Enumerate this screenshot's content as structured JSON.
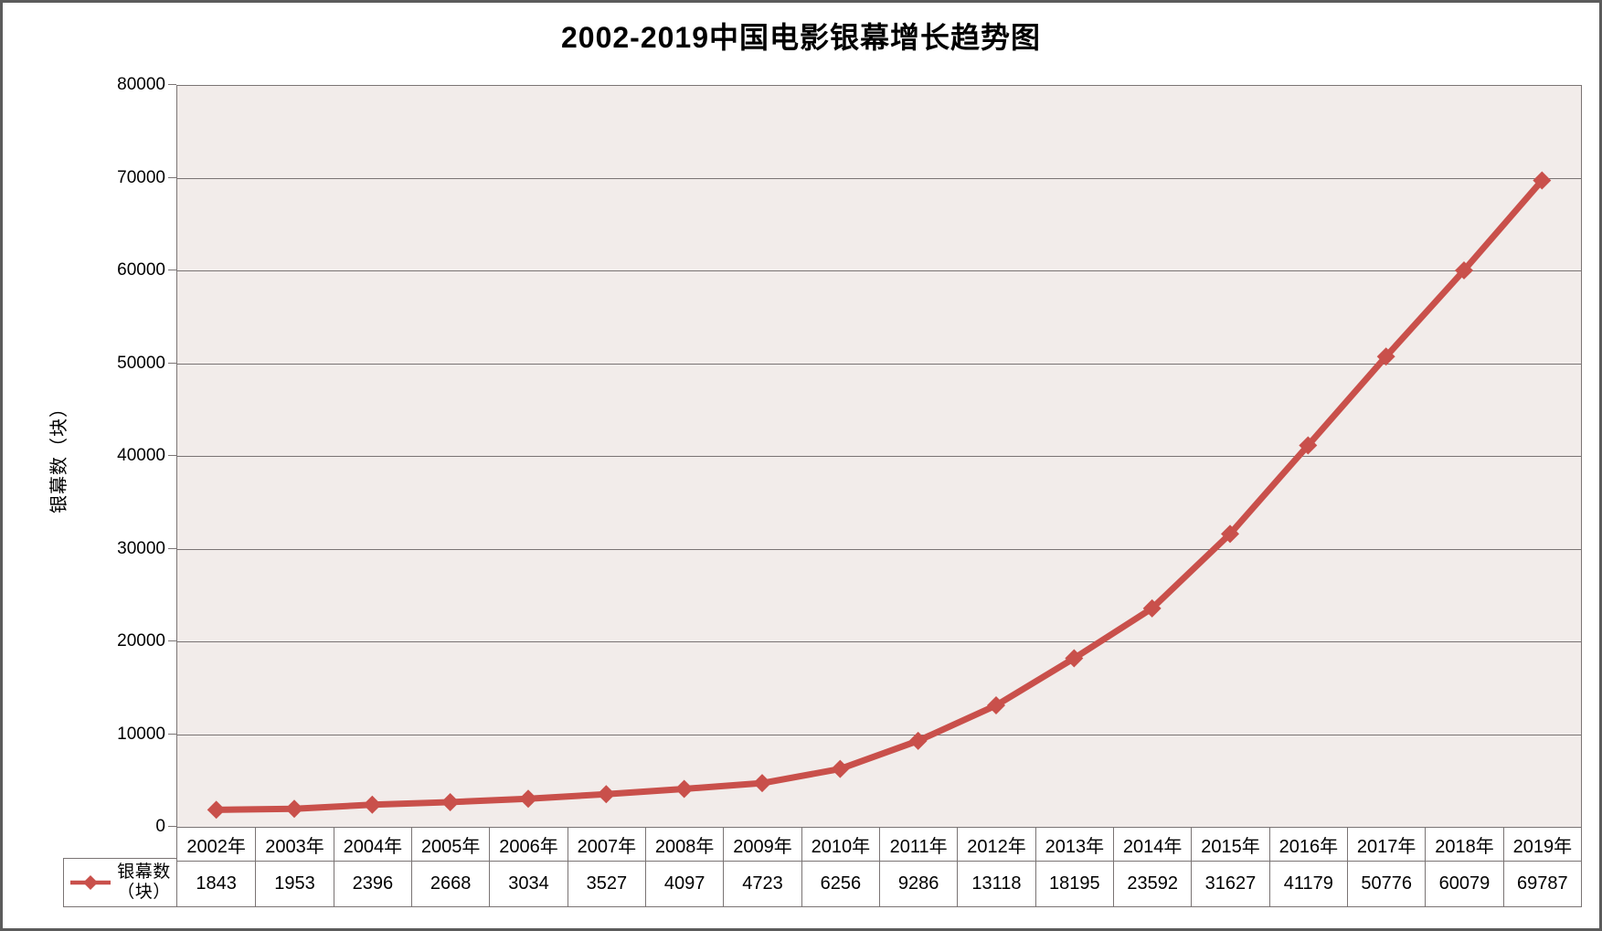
{
  "chart_data": {
    "type": "line",
    "title": "2002-2019中国电影银幕增长趋势图",
    "xlabel": "",
    "ylabel": "银幕数（块）",
    "categories": [
      "2002年",
      "2003年",
      "2004年",
      "2005年",
      "2006年",
      "2007年",
      "2008年",
      "2009年",
      "2010年",
      "2011年",
      "2012年",
      "2013年",
      "2014年",
      "2015年",
      "2016年",
      "2017年",
      "2018年",
      "2019年"
    ],
    "series": [
      {
        "name": "银幕数（块）",
        "values": [
          1843,
          1953,
          2396,
          2668,
          3034,
          3527,
          4097,
          4723,
          6256,
          9286,
          13118,
          18195,
          23592,
          31627,
          41179,
          50776,
          60079,
          69787
        ],
        "color": "#C9504B",
        "marker": "diamond"
      }
    ],
    "ylim": [
      0,
      80000
    ],
    "ytick_step": 10000,
    "yticks": [
      "0",
      "10000",
      "20000",
      "30000",
      "40000",
      "50000",
      "60000",
      "70000",
      "80000"
    ],
    "grid": true,
    "gridline_color": "#7A7474",
    "plot_background": "#F2ECEA",
    "legend_position": "bottom-left",
    "data_table_shown": true
  },
  "legend": {
    "lines": [
      "银幕数",
      "（块）"
    ]
  }
}
